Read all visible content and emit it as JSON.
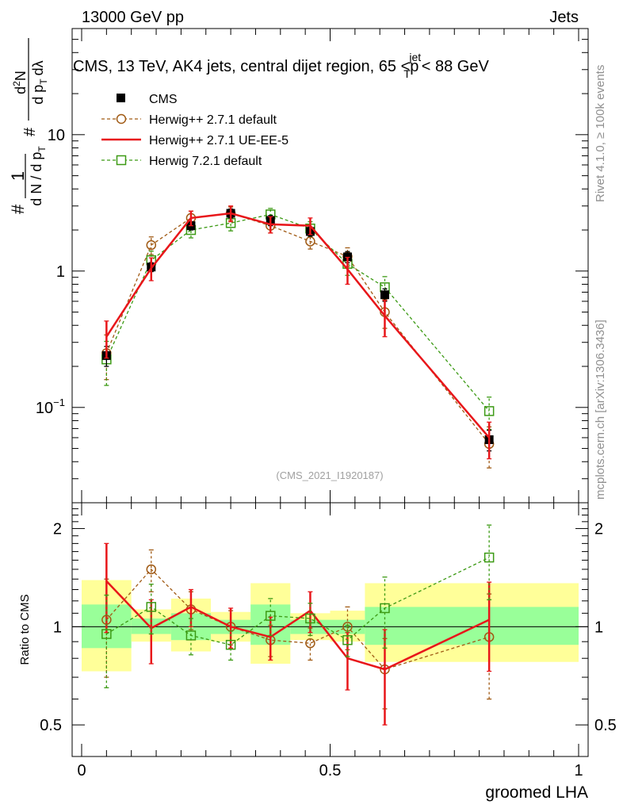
{
  "header": {
    "beam": "13000 GeV pp",
    "category": "Jets",
    "title_prefix": "CMS, 13 TeV, AK4 jets, central dijet region, 65 <",
    "title_pt": "p",
    "title_sup": "jet",
    "title_sub": "T",
    "title_suffix": "< 88 GeV",
    "rivet_label": "Rivet 4.1.0, ≥ 100k events",
    "mcplots_label": "mcplots.cern.ch [arXiv:1306.3436]",
    "analysis_id": "(CMS_2021_I1920187)"
  },
  "ylabel_main": {
    "hash": "#",
    "one": "1",
    "dN": "d N / d p",
    "T": "T",
    "num": "d",
    "num_sup": "2",
    "num_N": "N",
    "den": "d p",
    "den_sub": "T",
    "den_lambda": "dλ"
  },
  "colors": {
    "cms": "#000000",
    "h271": "#a05a14",
    "ue": "#e8161a",
    "h721": "#3c9a14",
    "band_yellow": "#ffff99",
    "band_green": "#99ff99"
  },
  "chart_data": [
    {
      "type": "scatter",
      "panel": "main",
      "ylabel": "1/dN/dp_T d²N/dp_T dλ",
      "yscale": "log",
      "ylim": [
        0.02,
        60
      ],
      "xlim": [
        0,
        1
      ],
      "yticks": [
        {
          "v": 0.1,
          "m": "10",
          "e": "−1"
        },
        {
          "v": 1,
          "m": "1",
          "e": ""
        },
        {
          "v": 10,
          "m": "10",
          "e": ""
        }
      ],
      "legend": [
        "CMS",
        "Herwig++ 2.7.1 default",
        "Herwig++ 2.7.1 UE-EE-5",
        "Herwig 7.2.1 default"
      ],
      "series": [
        {
          "name": "CMS",
          "style": "square-filled",
          "color": "#000000",
          "x": [
            0.05,
            0.14,
            0.22,
            0.3,
            0.38,
            0.46,
            0.535,
            0.61,
            0.82
          ],
          "y": [
            0.24,
            1.07,
            2.15,
            2.65,
            2.35,
            1.95,
            1.27,
            0.67,
            0.058
          ],
          "xerr": [
            0.05,
            0.04,
            0.04,
            0.04,
            0.04,
            0.04,
            0.035,
            0.04,
            0.17
          ],
          "yerr_lo": [
            0.04,
            0.08,
            0.15,
            0.2,
            0.2,
            0.15,
            0.12,
            0.07,
            0.01
          ],
          "yerr_hi": [
            0.04,
            0.08,
            0.15,
            0.2,
            0.2,
            0.15,
            0.12,
            0.07,
            0.01
          ]
        },
        {
          "name": "Herwig++ 2.7.1 default",
          "style": "circle-dashed",
          "color": "#a05a14",
          "x": [
            0.05,
            0.14,
            0.22,
            0.3,
            0.38,
            0.46,
            0.535,
            0.61,
            0.82
          ],
          "y": [
            0.25,
            1.55,
            2.45,
            2.65,
            2.15,
            1.65,
            1.28,
            0.5,
            0.054
          ],
          "yerr_lo": [
            0.09,
            0.23,
            0.3,
            0.3,
            0.25,
            0.2,
            0.2,
            0.12,
            0.018
          ],
          "yerr_hi": [
            0.09,
            0.23,
            0.3,
            0.3,
            0.25,
            0.2,
            0.2,
            0.12,
            0.018
          ]
        },
        {
          "name": "Herwig++ 2.7.1 UE-EE-5",
          "style": "line-solid",
          "color": "#e8161a",
          "x": [
            0.05,
            0.14,
            0.22,
            0.3,
            0.38,
            0.46,
            0.535,
            0.61,
            0.82
          ],
          "y": [
            0.33,
            1.05,
            2.45,
            2.65,
            2.2,
            2.15,
            1.03,
            0.47,
            0.06
          ],
          "yerr_lo": [
            0.1,
            0.2,
            0.3,
            0.35,
            0.3,
            0.3,
            0.23,
            0.14,
            0.018
          ],
          "yerr_hi": [
            0.1,
            0.2,
            0.3,
            0.35,
            0.3,
            0.3,
            0.23,
            0.14,
            0.018
          ]
        },
        {
          "name": "Herwig 7.2.1 default",
          "style": "square-open-dashed",
          "color": "#3c9a14",
          "x": [
            0.05,
            0.14,
            0.22,
            0.3,
            0.38,
            0.46,
            0.535,
            0.61,
            0.82
          ],
          "y": [
            0.225,
            1.2,
            2.0,
            2.25,
            2.6,
            2.05,
            1.13,
            0.76,
            0.094
          ],
          "yerr_lo": [
            0.08,
            0.2,
            0.25,
            0.28,
            0.28,
            0.25,
            0.2,
            0.15,
            0.025
          ],
          "yerr_hi": [
            0.08,
            0.2,
            0.25,
            0.28,
            0.28,
            0.25,
            0.2,
            0.15,
            0.025
          ]
        }
      ]
    },
    {
      "type": "scatter",
      "panel": "ratio",
      "ylabel": "Ratio to CMS",
      "xlabel": "groomed LHA",
      "yscale": "log",
      "ylim": [
        0.4,
        2.4
      ],
      "xlim": [
        0,
        1
      ],
      "yticks": [
        {
          "v": 0.5,
          "m": "0.5"
        },
        {
          "v": 1,
          "m": "1"
        },
        {
          "v": 2,
          "m": "2"
        }
      ],
      "xticks": [
        {
          "v": 0,
          "m": "0"
        },
        {
          "v": 0.5,
          "m": "0.5"
        },
        {
          "v": 1,
          "m": "1"
        }
      ],
      "bands": [
        {
          "x0": 0.0,
          "x1": 0.1,
          "y_lo": 0.73,
          "y_hi": 1.39,
          "g_lo": 0.86,
          "g_hi": 1.17
        },
        {
          "x0": 0.1,
          "x1": 0.18,
          "y_lo": 0.9,
          "y_hi": 1.13,
          "g_lo": 0.95,
          "g_hi": 1.06
        },
        {
          "x0": 0.18,
          "x1": 0.26,
          "y_lo": 0.84,
          "y_hi": 1.22,
          "g_lo": 0.91,
          "g_hi": 1.1
        },
        {
          "x0": 0.26,
          "x1": 0.34,
          "y_lo": 0.9,
          "y_hi": 1.11,
          "g_lo": 0.95,
          "g_hi": 1.05
        },
        {
          "x0": 0.34,
          "x1": 0.42,
          "y_lo": 0.77,
          "y_hi": 1.36,
          "g_lo": 0.88,
          "g_hi": 1.17
        },
        {
          "x0": 0.42,
          "x1": 0.5,
          "y_lo": 0.91,
          "y_hi": 1.1,
          "g_lo": 0.95,
          "g_hi": 1.05
        },
        {
          "x0": 0.5,
          "x1": 0.57,
          "y_lo": 0.9,
          "y_hi": 1.12,
          "g_lo": 0.95,
          "g_hi": 1.05
        },
        {
          "x0": 0.57,
          "x1": 1.0,
          "y_lo": 0.78,
          "y_hi": 1.36,
          "g_lo": 0.88,
          "g_hi": 1.15
        }
      ],
      "series": [
        {
          "name": "Herwig++ 2.7.1 default",
          "color": "#a05a14",
          "x": [
            0.05,
            0.14,
            0.22,
            0.3,
            0.38,
            0.46,
            0.535,
            0.61,
            0.82
          ],
          "y": [
            1.05,
            1.5,
            1.13,
            1.0,
            0.91,
            0.89,
            1.0,
            0.74,
            0.93
          ],
          "yerr_lo": [
            0.35,
            0.22,
            0.15,
            0.12,
            0.1,
            0.1,
            0.15,
            0.18,
            0.33
          ],
          "yerr_hi": [
            0.35,
            0.22,
            0.15,
            0.12,
            0.1,
            0.1,
            0.15,
            0.18,
            0.33
          ]
        },
        {
          "name": "Herwig++ 2.7.1 UE-EE-5",
          "color": "#e8161a",
          "x": [
            0.05,
            0.14,
            0.22,
            0.3,
            0.38,
            0.46,
            0.535,
            0.61,
            0.82
          ],
          "y": [
            1.38,
            0.99,
            1.15,
            1.0,
            0.93,
            1.12,
            0.8,
            0.74,
            1.05
          ],
          "yerr_lo": [
            0.42,
            0.22,
            0.15,
            0.14,
            0.14,
            0.16,
            0.16,
            0.24,
            0.32
          ],
          "yerr_hi": [
            0.42,
            0.22,
            0.15,
            0.14,
            0.14,
            0.16,
            0.16,
            0.24,
            0.32
          ]
        },
        {
          "name": "Herwig 7.2.1 default",
          "color": "#3c9a14",
          "x": [
            0.05,
            0.14,
            0.22,
            0.3,
            0.38,
            0.46,
            0.535,
            0.61,
            0.82
          ],
          "y": [
            0.95,
            1.15,
            0.94,
            0.88,
            1.08,
            1.06,
            0.91,
            1.14,
            1.63
          ],
          "yerr_lo": [
            0.3,
            0.2,
            0.12,
            0.09,
            0.14,
            0.12,
            0.1,
            0.28,
            0.42
          ],
          "yerr_hi": [
            0.3,
            0.2,
            0.12,
            0.09,
            0.14,
            0.12,
            0.1,
            0.28,
            0.42
          ]
        }
      ]
    }
  ]
}
